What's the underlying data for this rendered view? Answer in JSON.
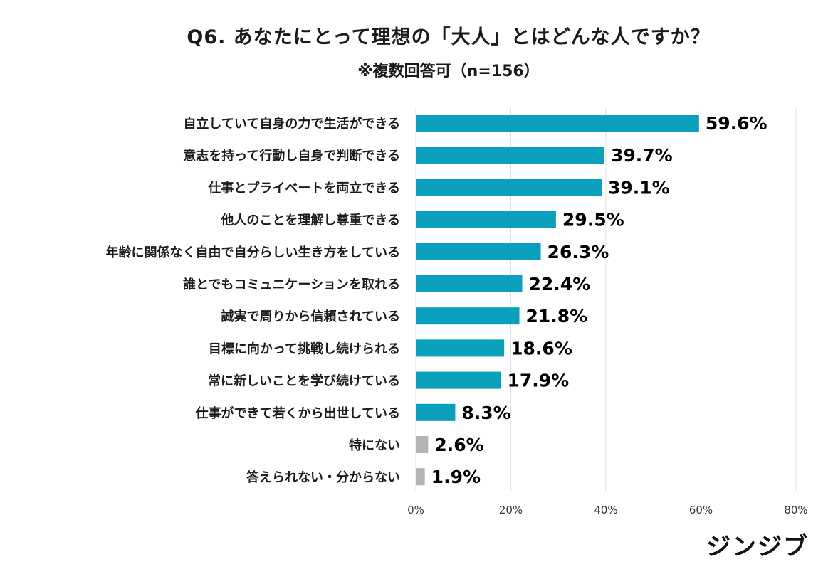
{
  "title": "Q6. あなたにとって理想の「大人」とはどんな人ですか？",
  "subtitle": "※複数回答可（n=156）",
  "brand": "ジンジブ",
  "colors": {
    "main": "#0aa0bb",
    "other": "#b3b3b3",
    "grid": "#e0e0e0"
  },
  "chart_data": {
    "type": "bar",
    "orientation": "horizontal",
    "categories": [
      "自立していて自身の力で生活ができる",
      "意志を持って行動し自身で判断できる",
      "仕事とプライベートを両立できる",
      "他人のことを理解し尊重できる",
      "年齢に関係なく自由で自分らしい生き方をしている",
      "誰とでもコミュニケーションを取れる",
      "誠実で周りから信頼されている",
      "目標に向かって挑戦し続けられる",
      "常に新しいことを学び続けている",
      "仕事ができて若くから出世している",
      "特にない",
      "答えられない・分からない"
    ],
    "values": [
      59.6,
      39.7,
      39.1,
      29.5,
      26.3,
      22.4,
      21.8,
      18.6,
      17.9,
      8.3,
      2.6,
      1.9
    ],
    "value_labels": [
      "59.6%",
      "39.7%",
      "39.1%",
      "29.5%",
      "26.3%",
      "22.4%",
      "21.8%",
      "18.6%",
      "17.9%",
      "8.3%",
      "2.6%",
      "1.9%"
    ],
    "bar_colors": [
      "main",
      "main",
      "main",
      "main",
      "main",
      "main",
      "main",
      "main",
      "main",
      "main",
      "other",
      "other"
    ],
    "xlim": [
      0,
      80
    ],
    "x_ticks": [
      0,
      20,
      40,
      60,
      80
    ],
    "x_tick_labels": [
      "0%",
      "20%",
      "40%",
      "60%",
      "80%"
    ],
    "grid": true,
    "legend": "none"
  }
}
